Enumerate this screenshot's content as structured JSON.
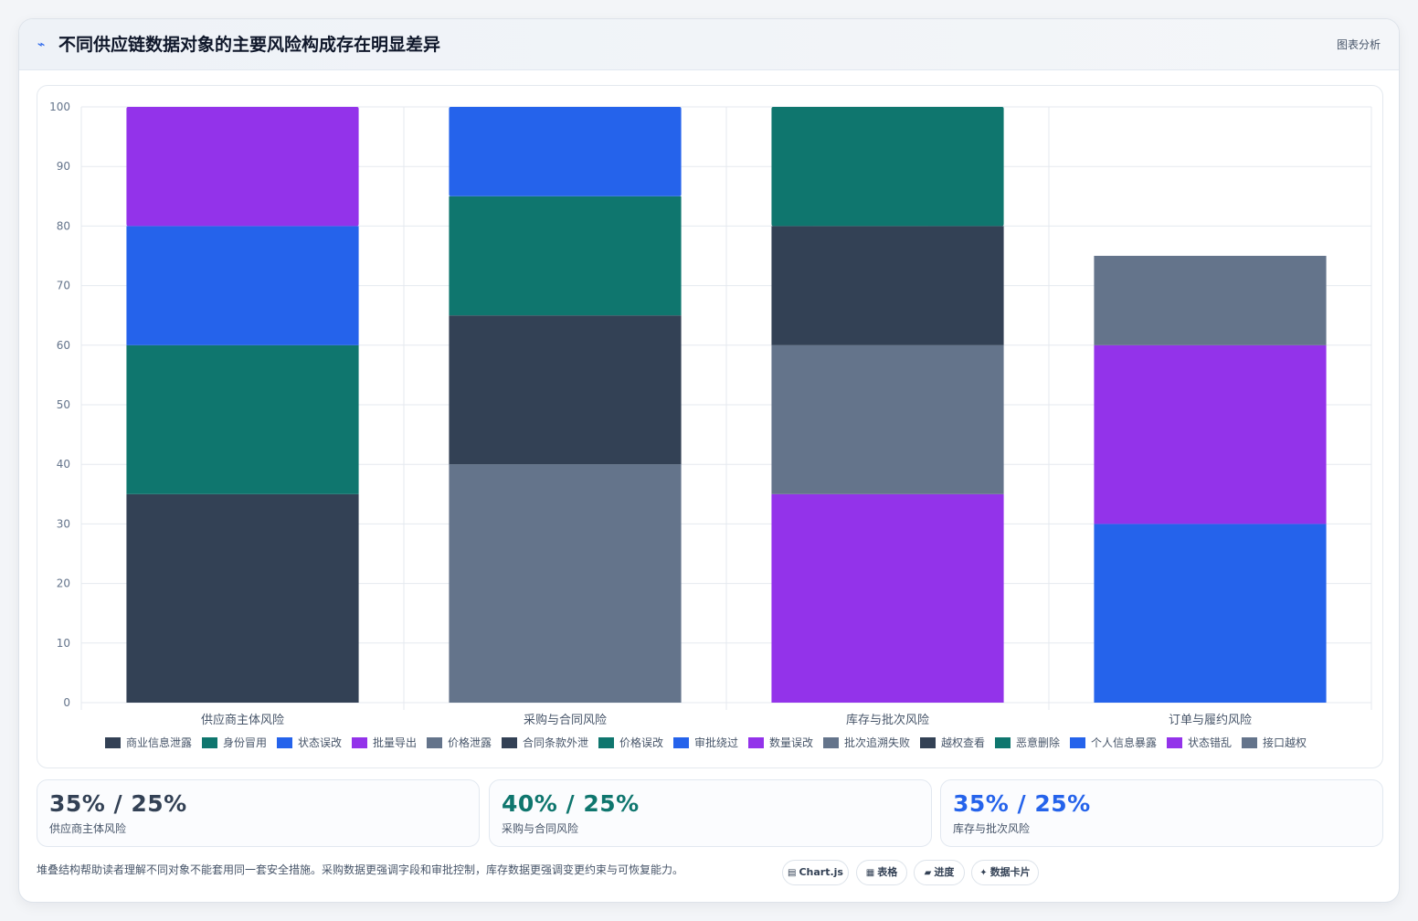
{
  "header": {
    "icon": "sparkline-icon",
    "title": "不同供应链数据对象的主要风险构成存在明显差异",
    "link_label": "图表分析"
  },
  "chart_data": {
    "type": "bar",
    "stacked": true,
    "title": "",
    "xlabel": "",
    "ylabel": "",
    "ylim": [
      0,
      100
    ],
    "yticks": [
      0,
      10,
      20,
      30,
      40,
      50,
      60,
      70,
      80,
      90,
      100
    ],
    "grid": true,
    "legend_position": "bottom",
    "categories": [
      "供应商主体风险",
      "采购与合同风险",
      "库存与批次风险",
      "订单与履约风险"
    ],
    "series": [
      {
        "name": "商业信息泄露",
        "color": "#334155",
        "values": [
          35,
          0,
          0,
          0
        ]
      },
      {
        "name": "身份冒用",
        "color": "#0f766e",
        "values": [
          25,
          0,
          0,
          0
        ]
      },
      {
        "name": "状态误改",
        "color": "#2563eb",
        "values": [
          20,
          0,
          0,
          0
        ]
      },
      {
        "name": "批量导出",
        "color": "#9333ea",
        "values": [
          20,
          0,
          0,
          0
        ]
      },
      {
        "name": "价格泄露",
        "color": "#64748b",
        "values": [
          0,
          40,
          0,
          0
        ]
      },
      {
        "name": "合同条款外泄",
        "color": "#334155",
        "values": [
          0,
          25,
          0,
          0
        ]
      },
      {
        "name": "价格误改",
        "color": "#0f766e",
        "values": [
          0,
          20,
          0,
          0
        ]
      },
      {
        "name": "审批绕过",
        "color": "#2563eb",
        "values": [
          0,
          15,
          0,
          0
        ]
      },
      {
        "name": "数量误改",
        "color": "#9333ea",
        "values": [
          0,
          0,
          35,
          0
        ]
      },
      {
        "name": "批次追溯失败",
        "color": "#64748b",
        "values": [
          0,
          0,
          25,
          0
        ]
      },
      {
        "name": "越权查看",
        "color": "#334155",
        "values": [
          0,
          0,
          20,
          0
        ]
      },
      {
        "name": "恶意删除",
        "color": "#0f766e",
        "values": [
          0,
          0,
          20,
          0
        ]
      },
      {
        "name": "个人信息暴露",
        "color": "#2563eb",
        "values": [
          0,
          0,
          0,
          30
        ]
      },
      {
        "name": "状态错乱",
        "color": "#9333ea",
        "values": [
          0,
          0,
          0,
          30
        ]
      },
      {
        "name": "接口越权",
        "color": "#64748b",
        "values": [
          0,
          0,
          0,
          15
        ]
      }
    ],
    "stack_order_note_values": {
      "订单与履约风险_base_purple": 25
    }
  },
  "kpis": [
    {
      "value": "35% / 25%",
      "label": "供应商主体风险",
      "color": "#334155"
    },
    {
      "value": "40% / 25%",
      "label": "采购与合同风险",
      "color": "#0f766e"
    },
    {
      "value": "35% / 25%",
      "label": "库存与批次风险",
      "color": "#2563eb"
    }
  ],
  "footnote": "堆叠结构帮助读者理解不同对象不能套用同一套安全措施。采购数据更强调字段和审批控制，库存数据更强调变更约束与可恢复能力。",
  "tags": [
    {
      "icon": "chart-icon",
      "glyph": "▤",
      "label": "Chart.js"
    },
    {
      "icon": "table-icon",
      "glyph": "▦",
      "label": "表格"
    },
    {
      "icon": "progress-icon",
      "glyph": "▰",
      "label": "进度"
    },
    {
      "icon": "sparkle-icon",
      "glyph": "✦",
      "label": "数据卡片"
    }
  ]
}
